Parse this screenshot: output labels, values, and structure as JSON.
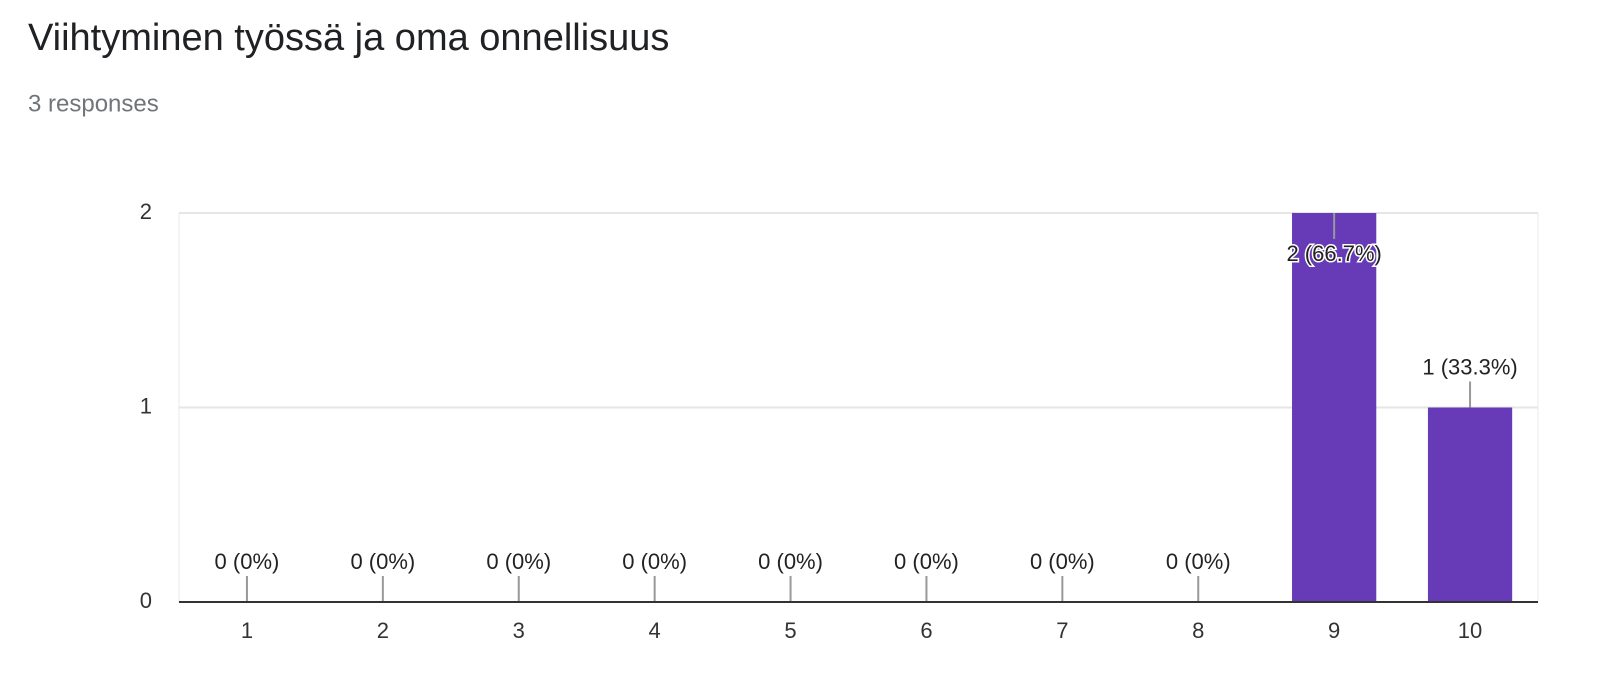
{
  "chart_data": {
    "type": "bar",
    "title": "Viihtyminen työssä ja oma onnellisuus",
    "subtitle": "3 responses",
    "categories": [
      "1",
      "2",
      "3",
      "4",
      "5",
      "6",
      "7",
      "8",
      "9",
      "10"
    ],
    "values": [
      0,
      0,
      0,
      0,
      0,
      0,
      0,
      0,
      2,
      1
    ],
    "value_labels": [
      "0 (0%)",
      "0 (0%)",
      "0 (0%)",
      "0 (0%)",
      "0 (0%)",
      "0 (0%)",
      "0 (0%)",
      "0 (0%)",
      "2 (66.7%)",
      "1 (33.3%)"
    ],
    "color": "#673ab7",
    "ylim": [
      0,
      2
    ],
    "yticks": [
      0,
      1,
      2
    ],
    "grid": true
  }
}
